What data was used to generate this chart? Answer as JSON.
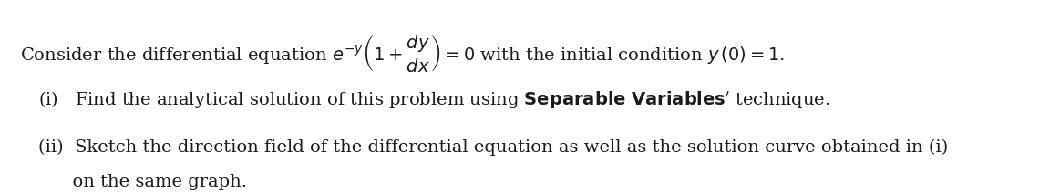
{
  "background_color": "#ffffff",
  "line1": "Consider the differential equation $e^{-y}\\left(1 + \\dfrac{dy}{dx}\\right) = 0$ with the initial condition $y\\,(0) = 1$.",
  "line2": "(i)\\;\\; Find the analytical solution of this problem using \\textbf{Separable Variables\\textquoteright} technique.",
  "line3_a": "(ii)\\; Sketch the direction field of the differential equation as well as the solution curve obtained in (i)",
  "line3_b": "\\quad\\quad on the same graph.",
  "font_size_main": 14,
  "text_color": "#1a1a1a",
  "fig_width": 11.52,
  "fig_height": 2.11,
  "dpi": 100
}
